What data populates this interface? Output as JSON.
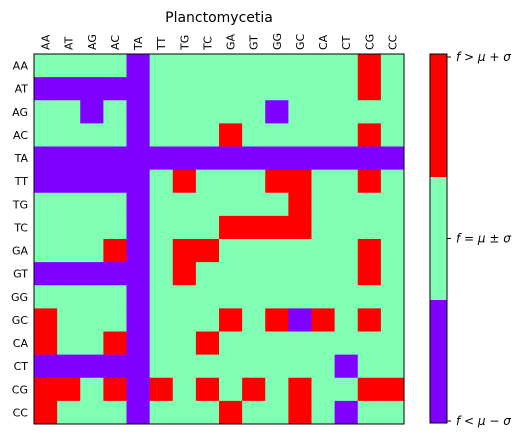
{
  "chart_data": {
    "type": "heatmap",
    "title": "Planctomycetia",
    "x_labels": [
      "AA",
      "AT",
      "AG",
      "AC",
      "TA",
      "TT",
      "TG",
      "TC",
      "GA",
      "GT",
      "GG",
      "GC",
      "CA",
      "CT",
      "CG",
      "CC"
    ],
    "y_labels": [
      "AA",
      "AT",
      "AG",
      "AC",
      "TA",
      "TT",
      "TG",
      "TC",
      "GA",
      "GT",
      "GG",
      "GC",
      "CA",
      "CT",
      "CG",
      "CC"
    ],
    "value_legend": {
      "0": "below",
      "1": "within",
      "2": "above"
    },
    "values": [
      [
        1,
        1,
        1,
        1,
        0,
        1,
        1,
        1,
        1,
        1,
        1,
        1,
        1,
        1,
        2,
        1
      ],
      [
        0,
        0,
        0,
        0,
        0,
        1,
        1,
        1,
        1,
        1,
        1,
        1,
        1,
        1,
        2,
        1
      ],
      [
        1,
        1,
        0,
        1,
        0,
        1,
        1,
        1,
        1,
        1,
        0,
        1,
        1,
        1,
        1,
        1
      ],
      [
        1,
        1,
        1,
        1,
        0,
        1,
        1,
        1,
        2,
        1,
        1,
        1,
        1,
        1,
        2,
        1
      ],
      [
        0,
        0,
        0,
        0,
        0,
        0,
        0,
        0,
        0,
        0,
        0,
        0,
        0,
        0,
        0,
        0
      ],
      [
        0,
        0,
        0,
        0,
        0,
        1,
        2,
        1,
        1,
        1,
        2,
        2,
        1,
        1,
        2,
        1
      ],
      [
        1,
        1,
        1,
        1,
        0,
        1,
        1,
        1,
        1,
        1,
        1,
        2,
        1,
        1,
        1,
        1
      ],
      [
        1,
        1,
        1,
        1,
        0,
        1,
        1,
        1,
        2,
        2,
        2,
        2,
        1,
        1,
        1,
        1
      ],
      [
        1,
        1,
        1,
        2,
        0,
        1,
        2,
        2,
        1,
        1,
        1,
        1,
        1,
        1,
        2,
        1
      ],
      [
        0,
        0,
        0,
        0,
        0,
        1,
        2,
        1,
        1,
        1,
        1,
        1,
        1,
        1,
        2,
        1
      ],
      [
        1,
        1,
        1,
        1,
        0,
        1,
        1,
        1,
        1,
        1,
        1,
        1,
        1,
        1,
        1,
        1
      ],
      [
        2,
        1,
        1,
        1,
        0,
        1,
        1,
        1,
        2,
        1,
        2,
        0,
        2,
        1,
        2,
        1
      ],
      [
        2,
        1,
        1,
        2,
        0,
        1,
        1,
        2,
        1,
        1,
        1,
        1,
        1,
        1,
        1,
        1
      ],
      [
        0,
        0,
        0,
        0,
        0,
        1,
        1,
        1,
        1,
        1,
        1,
        1,
        1,
        0,
        1,
        1
      ],
      [
        2,
        2,
        1,
        2,
        0,
        2,
        1,
        2,
        1,
        2,
        1,
        2,
        1,
        1,
        2,
        2
      ],
      [
        2,
        1,
        1,
        1,
        0,
        1,
        1,
        1,
        2,
        1,
        1,
        2,
        1,
        0,
        1,
        1
      ]
    ],
    "colors": {
      "below": "#8000ff",
      "within": "#80ffb4",
      "above": "#ff0000"
    },
    "colorbar": {
      "labels": [
        "f > μ + σ",
        "f = μ ± σ",
        "f < μ − σ"
      ]
    }
  }
}
